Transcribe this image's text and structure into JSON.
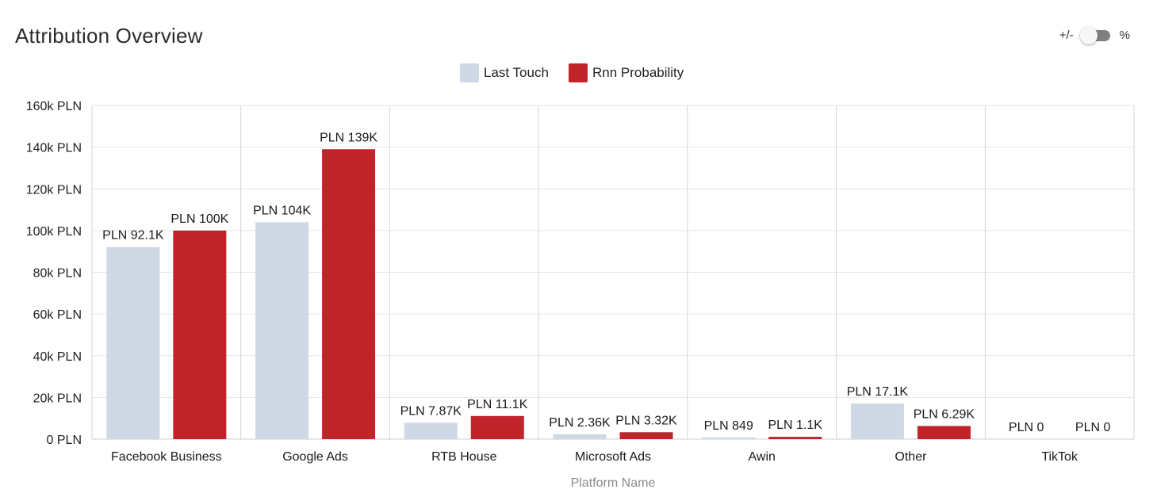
{
  "page": {
    "title": "Attribution Overview",
    "toggle": {
      "left_label": "+/-",
      "right_label": "%",
      "state": "left"
    }
  },
  "colors": {
    "last_touch": "#cfd9e5",
    "rnn": "#c1232b",
    "grid": "#e6e6e6",
    "divider": "#d6d6d6"
  },
  "chart_data": {
    "type": "bar",
    "title": "Attribution Overview",
    "xlabel": "Platform Name",
    "ylabel": "",
    "ylim": [
      0,
      160000
    ],
    "yticks": [
      0,
      20000,
      40000,
      60000,
      80000,
      100000,
      120000,
      140000,
      160000
    ],
    "ytick_labels": [
      "0 PLN",
      "20k PLN",
      "40k PLN",
      "60k PLN",
      "80k PLN",
      "100k PLN",
      "120k PLN",
      "140k PLN",
      "160k PLN"
    ],
    "legend_position": "top-center",
    "categories": [
      "Facebook Business",
      "Google Ads",
      "RTB House",
      "Microsoft Ads",
      "Awin",
      "Other",
      "TikTok"
    ],
    "series": [
      {
        "name": "Last Touch",
        "values": [
          92100,
          104000,
          7870,
          2360,
          849,
          17100,
          0
        ],
        "labels": [
          "PLN 92.1K",
          "PLN 104K",
          "PLN 7.87K",
          "PLN 2.36K",
          "PLN 849",
          "PLN 17.1K",
          "PLN 0"
        ]
      },
      {
        "name": "Rnn Probability",
        "values": [
          100000,
          139000,
          11100,
          3320,
          1100,
          6290,
          0
        ],
        "labels": [
          "PLN 100K",
          "PLN 139K",
          "PLN 11.1K",
          "PLN 3.32K",
          "PLN 1.1K",
          "PLN 6.29K",
          "PLN 0"
        ]
      }
    ]
  }
}
